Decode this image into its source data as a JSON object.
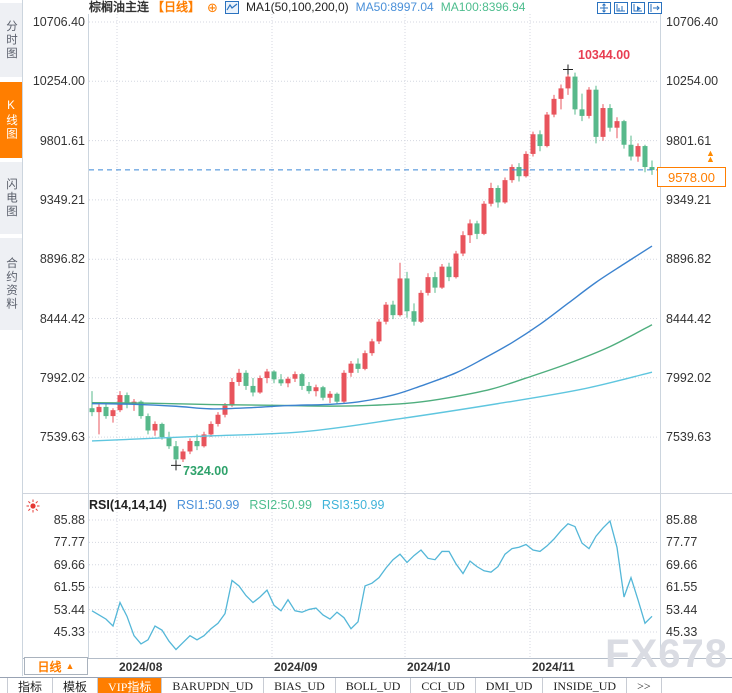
{
  "sidebar": {
    "items": [
      {
        "label": "分时图",
        "active": false
      },
      {
        "label": "K线图",
        "active": true
      },
      {
        "label": "闪电图",
        "active": false
      },
      {
        "label": "合约资料",
        "active": false
      }
    ]
  },
  "header": {
    "symbol": "棕榈油主连",
    "period_tag": "【日线】",
    "ma_param": "MA1(50,100,200,0)",
    "ma50_label": "MA50:8997.04",
    "ma100_label": "MA100:8396.94"
  },
  "icons": {
    "expand": "⊕",
    "triangle_up": "▲"
  },
  "annotations": {
    "high": "10344.00",
    "low": "7324.00",
    "last_price": "9578.00"
  },
  "rsi_header": {
    "param": "RSI(14,14,14)",
    "rsi1": "RSI1:50.99",
    "rsi2": "RSI2:50.99",
    "rsi3": "RSI3:50.99"
  },
  "x_axis": {
    "period_label": "日线",
    "period_arrow": "▲",
    "ticks": [
      "2024/08",
      "2024/09",
      "2024/10",
      "2024/11"
    ]
  },
  "toolbar": {
    "items": [
      {
        "label": "指标",
        "active": false
      },
      {
        "label": "模板",
        "active": false
      },
      {
        "label": "VIP指标",
        "active": true
      },
      {
        "label": "BARUPDN_UD",
        "active": false
      },
      {
        "label": "BIAS_UD",
        "active": false
      },
      {
        "label": "BOLL_UD",
        "active": false
      },
      {
        "label": "CCI_UD",
        "active": false
      },
      {
        "label": "DMI_UD",
        "active": false
      },
      {
        "label": "INSIDE_UD",
        "active": false
      },
      {
        "label": ">>",
        "active": false
      }
    ]
  },
  "watermark": "FX678",
  "colors": {
    "accent": "#ff7e00",
    "up": "#e8545c",
    "down": "#57b98b",
    "ma50": "#3c83cf",
    "ma100": "#4fae7e",
    "ma200": "#5fc6df",
    "rsi_line": "#54b7d8",
    "dashed_line": "#3a87d6",
    "high_text": "#e83e52",
    "low_text": "#2fa26b",
    "grid": "#d4d7e0"
  },
  "chart_data": [
    {
      "type": "candlestick",
      "title": "棕榈油主连 日线",
      "ylabel": "price",
      "ylim": [
        7300,
        10750
      ],
      "y_ticks": [
        10706.4,
        10254.0,
        9801.61,
        9349.21,
        8896.82,
        8444.42,
        7992.02,
        7539.63
      ],
      "x_ticks": [
        "2024/08",
        "2024/09",
        "2024/10",
        "2024/11"
      ],
      "high_annotation": 10344.0,
      "low_annotation": 7324.0,
      "last_price": 9578.0,
      "ma_last": {
        "ma50": 8997.04,
        "ma100": 8396.94
      },
      "high_index": 68,
      "low_index": 12,
      "candles": [
        [
          7760,
          7890,
          7700,
          7730
        ],
        [
          7730,
          7800,
          7560,
          7770
        ],
        [
          7770,
          7800,
          7680,
          7700
        ],
        [
          7700,
          7760,
          7650,
          7745
        ],
        [
          7745,
          7890,
          7730,
          7860
        ],
        [
          7860,
          7880,
          7760,
          7790
        ],
        [
          7790,
          7830,
          7740,
          7810
        ],
        [
          7810,
          7820,
          7680,
          7700
        ],
        [
          7700,
          7720,
          7560,
          7590
        ],
        [
          7590,
          7660,
          7550,
          7640
        ],
        [
          7640,
          7650,
          7520,
          7540
        ],
        [
          7540,
          7580,
          7450,
          7470
        ],
        [
          7470,
          7510,
          7324,
          7370
        ],
        [
          7370,
          7450,
          7350,
          7430
        ],
        [
          7430,
          7530,
          7410,
          7510
        ],
        [
          7510,
          7560,
          7440,
          7470
        ],
        [
          7470,
          7580,
          7460,
          7560
        ],
        [
          7560,
          7660,
          7540,
          7640
        ],
        [
          7640,
          7730,
          7620,
          7710
        ],
        [
          7710,
          7800,
          7690,
          7780
        ],
        [
          7780,
          7990,
          7770,
          7960
        ],
        [
          7960,
          8060,
          7930,
          8030
        ],
        [
          8030,
          8050,
          7900,
          7930
        ],
        [
          7930,
          7990,
          7850,
          7880
        ],
        [
          7880,
          8010,
          7870,
          7990
        ],
        [
          7990,
          8060,
          7950,
          8040
        ],
        [
          8040,
          8050,
          7950,
          7980
        ],
        [
          7980,
          8020,
          7930,
          7950
        ],
        [
          7950,
          8000,
          7920,
          7985
        ],
        [
          7985,
          8040,
          7960,
          8020
        ],
        [
          8020,
          8030,
          7900,
          7930
        ],
        [
          7930,
          7960,
          7870,
          7890
        ],
        [
          7890,
          7940,
          7850,
          7920
        ],
        [
          7920,
          7930,
          7820,
          7840
        ],
        [
          7840,
          7890,
          7800,
          7870
        ],
        [
          7870,
          7880,
          7790,
          7810
        ],
        [
          7810,
          8050,
          7800,
          8030
        ],
        [
          8030,
          8120,
          8000,
          8100
        ],
        [
          8100,
          8140,
          8030,
          8060
        ],
        [
          8060,
          8200,
          8050,
          8180
        ],
        [
          8180,
          8290,
          8160,
          8270
        ],
        [
          8270,
          8440,
          8250,
          8420
        ],
        [
          8420,
          8570,
          8400,
          8550
        ],
        [
          8550,
          8580,
          8440,
          8470
        ],
        [
          8470,
          8870,
          8460,
          8750
        ],
        [
          8750,
          8800,
          8450,
          8500
        ],
        [
          8500,
          8560,
          8390,
          8420
        ],
        [
          8420,
          8660,
          8410,
          8640
        ],
        [
          8640,
          8790,
          8620,
          8760
        ],
        [
          8760,
          8800,
          8640,
          8680
        ],
        [
          8680,
          8860,
          8670,
          8840
        ],
        [
          8840,
          8870,
          8730,
          8760
        ],
        [
          8760,
          8960,
          8750,
          8940
        ],
        [
          8940,
          9110,
          8920,
          9080
        ],
        [
          9080,
          9200,
          9020,
          9170
        ],
        [
          9170,
          9190,
          9050,
          9090
        ],
        [
          9090,
          9340,
          9080,
          9320
        ],
        [
          9320,
          9480,
          9300,
          9440
        ],
        [
          9440,
          9460,
          9290,
          9330
        ],
        [
          9330,
          9520,
          9320,
          9500
        ],
        [
          9500,
          9620,
          9480,
          9600
        ],
        [
          9600,
          9630,
          9490,
          9530
        ],
        [
          9530,
          9720,
          9520,
          9700
        ],
        [
          9700,
          9870,
          9680,
          9850
        ],
        [
          9850,
          9880,
          9720,
          9760
        ],
        [
          9760,
          10020,
          9750,
          10000
        ],
        [
          10000,
          10150,
          9980,
          10120
        ],
        [
          10120,
          10230,
          10040,
          10200
        ],
        [
          10200,
          10344,
          10150,
          10290
        ],
        [
          10290,
          10320,
          10000,
          10040
        ],
        [
          10040,
          10160,
          9950,
          9990
        ],
        [
          9990,
          10210,
          9970,
          10190
        ],
        [
          10190,
          10220,
          9780,
          9830
        ],
        [
          9830,
          10080,
          9800,
          10050
        ],
        [
          10050,
          10080,
          9870,
          9900
        ],
        [
          9900,
          9980,
          9820,
          9950
        ],
        [
          9950,
          9960,
          9740,
          9770
        ],
        [
          9770,
          9840,
          9650,
          9680
        ],
        [
          9680,
          9780,
          9640,
          9760
        ],
        [
          9760,
          9770,
          9560,
          9600
        ],
        [
          9600,
          9650,
          9540,
          9578
        ]
      ],
      "ma50_points": [
        [
          0,
          7795
        ],
        [
          6,
          7790
        ],
        [
          12,
          7775
        ],
        [
          17,
          7755
        ],
        [
          23,
          7765
        ],
        [
          28,
          7780
        ],
        [
          34,
          7790
        ],
        [
          38,
          7808
        ],
        [
          43,
          7860
        ],
        [
          47,
          7930
        ],
        [
          52,
          8030
        ],
        [
          56,
          8140
        ],
        [
          60,
          8260
        ],
        [
          64,
          8400
        ],
        [
          68,
          8560
        ],
        [
          72,
          8720
        ],
        [
          76,
          8860
        ],
        [
          80,
          8997
        ]
      ],
      "ma100_points": [
        [
          0,
          7802
        ],
        [
          8,
          7798
        ],
        [
          17,
          7788
        ],
        [
          26,
          7782
        ],
        [
          34,
          7776
        ],
        [
          40,
          7782
        ],
        [
          46,
          7802
        ],
        [
          51,
          7840
        ],
        [
          57,
          7905
        ],
        [
          62,
          7990
        ],
        [
          68,
          8100
        ],
        [
          74,
          8230
        ],
        [
          80,
          8397
        ]
      ],
      "ma200_points": [
        [
          0,
          7510
        ],
        [
          15,
          7545
        ],
        [
          30,
          7580
        ],
        [
          44,
          7680
        ],
        [
          58,
          7795
        ],
        [
          70,
          7905
        ],
        [
          80,
          8035
        ]
      ]
    },
    {
      "type": "line",
      "title": "RSI(14,14,14)",
      "ylim": [
        41,
        90
      ],
      "y_ticks": [
        85.88,
        77.77,
        69.66,
        61.55,
        53.44,
        45.33
      ],
      "series": [
        {
          "name": "RSI1",
          "last": 50.99,
          "values": [
            53,
            51.5,
            50,
            47.5,
            56,
            51,
            44,
            41,
            42.5,
            47.5,
            46,
            42,
            39,
            41.5,
            44,
            42.5,
            44,
            46.5,
            48.5,
            52,
            64,
            62,
            58.5,
            56,
            58,
            60.5,
            55,
            53,
            57,
            53,
            52.5,
            53.5,
            54,
            51.5,
            50,
            52.5,
            50.5,
            46.5,
            49,
            62,
            63,
            65,
            68.5,
            71.5,
            73.5,
            70.5,
            73,
            75,
            72,
            71.5,
            74.5,
            74.5,
            70,
            66.5,
            71,
            69,
            67.5,
            67,
            69,
            73.5,
            75.5,
            76,
            77,
            75,
            74.5,
            76.5,
            79,
            82,
            84.5,
            83.5,
            77.5,
            75.5,
            80,
            83,
            85.5,
            76,
            58,
            65,
            57,
            48.5,
            51
          ]
        },
        {
          "name": "RSI2",
          "last": 50.99,
          "note": "overlaps RSI1"
        },
        {
          "name": "RSI3",
          "last": 50.99,
          "note": "overlaps RSI1"
        }
      ]
    }
  ]
}
